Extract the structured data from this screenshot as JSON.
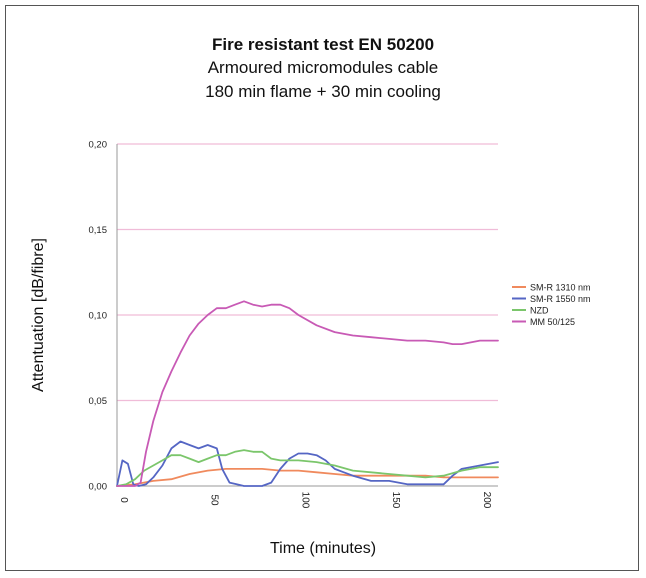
{
  "chart_data": {
    "type": "line",
    "title": "Fire resistant test EN 50200",
    "subtitle_lines": [
      "Armoured micromodules cable",
      "180 min flame + 30 min cooling"
    ],
    "xlabel": "Time (minutes)",
    "ylabel": "Attentuation [dB/fibre]",
    "xlim": [
      0,
      210
    ],
    "ylim": [
      0,
      0.2
    ],
    "x_ticks": [
      "0",
      "50",
      "100",
      "150",
      "200"
    ],
    "y_ticks": [
      "0,00",
      "0,05",
      "0,10",
      "0,15",
      "0,20"
    ],
    "grid": "horizontal",
    "legend_position": "right",
    "series": [
      {
        "name": "SM-R 1310 nm",
        "color": "#f08a5d",
        "x": [
          0,
          10,
          20,
          30,
          40,
          50,
          60,
          70,
          80,
          90,
          100,
          110,
          120,
          130,
          140,
          150,
          160,
          170,
          180,
          190,
          200,
          210
        ],
        "y": [
          0,
          0.001,
          0.003,
          0.004,
          0.007,
          0.009,
          0.01,
          0.01,
          0.01,
          0.009,
          0.009,
          0.008,
          0.007,
          0.006,
          0.006,
          0.006,
          0.006,
          0.006,
          0.005,
          0.005,
          0.005,
          0.005
        ]
      },
      {
        "name": "SM-R 1550 nm",
        "color": "#5566c4",
        "x": [
          0,
          3,
          6,
          9,
          12,
          16,
          20,
          25,
          30,
          35,
          40,
          45,
          50,
          55,
          58,
          62,
          66,
          70,
          75,
          80,
          85,
          90,
          95,
          100,
          105,
          110,
          115,
          120,
          125,
          130,
          140,
          150,
          160,
          170,
          180,
          185,
          190,
          200,
          210
        ],
        "y": [
          0,
          0.015,
          0.013,
          0.001,
          0,
          0.001,
          0.005,
          0.012,
          0.022,
          0.026,
          0.024,
          0.022,
          0.024,
          0.022,
          0.01,
          0.002,
          0.001,
          0,
          0,
          0,
          0.002,
          0.01,
          0.016,
          0.019,
          0.019,
          0.018,
          0.015,
          0.01,
          0.008,
          0.006,
          0.003,
          0.003,
          0.001,
          0.001,
          0.001,
          0.006,
          0.01,
          0.012,
          0.014
        ]
      },
      {
        "name": "NZD",
        "color": "#7bc66b",
        "x": [
          0,
          5,
          10,
          15,
          20,
          25,
          30,
          35,
          40,
          45,
          50,
          55,
          60,
          65,
          70,
          75,
          80,
          85,
          90,
          95,
          100,
          110,
          120,
          130,
          140,
          150,
          160,
          170,
          180,
          190,
          200,
          210
        ],
        "y": [
          0,
          0.001,
          0.004,
          0.009,
          0.012,
          0.015,
          0.018,
          0.018,
          0.016,
          0.014,
          0.016,
          0.018,
          0.018,
          0.02,
          0.021,
          0.02,
          0.02,
          0.016,
          0.015,
          0.015,
          0.015,
          0.014,
          0.012,
          0.009,
          0.008,
          0.007,
          0.006,
          0.005,
          0.006,
          0.009,
          0.011,
          0.011
        ]
      },
      {
        "name": "MM 50/125",
        "color": "#c85ab5",
        "x": [
          0,
          5,
          10,
          13,
          16,
          20,
          25,
          30,
          35,
          40,
          45,
          50,
          55,
          60,
          65,
          70,
          75,
          80,
          85,
          90,
          95,
          100,
          110,
          120,
          130,
          140,
          150,
          160,
          170,
          180,
          185,
          190,
          200,
          210
        ],
        "y": [
          0,
          0,
          0,
          0.002,
          0.02,
          0.038,
          0.055,
          0.067,
          0.078,
          0.088,
          0.095,
          0.1,
          0.104,
          0.104,
          0.106,
          0.108,
          0.106,
          0.105,
          0.106,
          0.106,
          0.104,
          0.1,
          0.094,
          0.09,
          0.088,
          0.087,
          0.086,
          0.085,
          0.085,
          0.084,
          0.083,
          0.083,
          0.085,
          0.085
        ]
      }
    ]
  }
}
